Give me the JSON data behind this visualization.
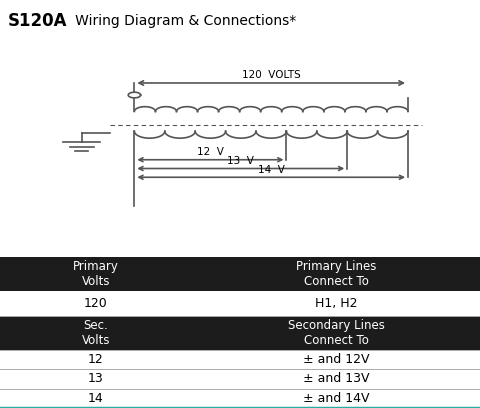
{
  "title_bold": "S120A",
  "title_rest": "   Wiring Diagram & Connections*",
  "wiring_header": "Wiring Diagram",
  "connections_header": "Connections",
  "header_bg": "#2aaca0",
  "header_text": "#ffffff",
  "table_bg_dark": "#1c1c1c",
  "table_bg_light": "#ffffff",
  "bg_color": "#ffffff",
  "line_color": "#555555",
  "volts_label": "120  VOLTS",
  "v12_label": "12  V",
  "v13_label": "13  V",
  "v14_label": "14  V",
  "teal_bottom": "#2aaca0"
}
